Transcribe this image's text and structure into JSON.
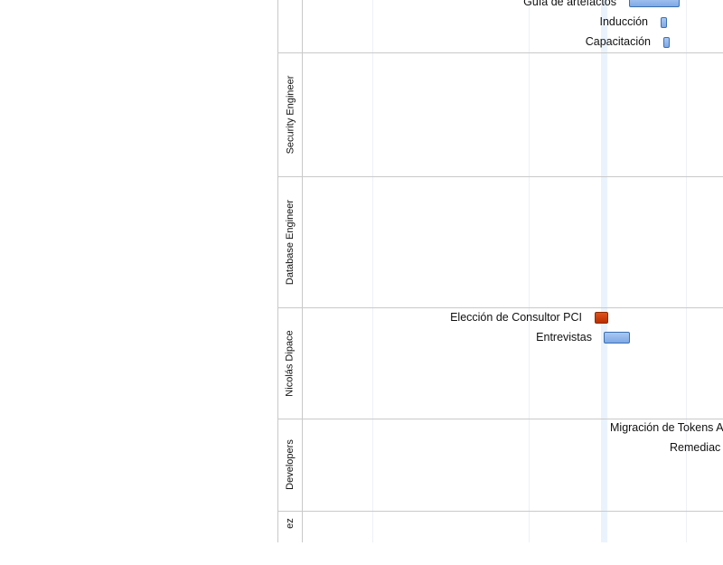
{
  "timeline": {
    "rows": [
      {
        "id": "top-group",
        "label": ""
      },
      {
        "id": "security-engineer",
        "label": "Security Engineer"
      },
      {
        "id": "database-engineer",
        "label": "Database Engineer"
      },
      {
        "id": "nicolas-dipace",
        "label": "Nicolás Dipace"
      },
      {
        "id": "developers",
        "label": "Developers"
      },
      {
        "id": "partial",
        "label": "ez"
      }
    ],
    "tasks": [
      {
        "label": "Guía de artefactos",
        "style": "normal"
      },
      {
        "label": "Inducción",
        "style": "normal"
      },
      {
        "label": "Capacitación",
        "style": "normal"
      },
      {
        "label": "Elección de Consultor PCI",
        "style": "milestone"
      },
      {
        "label": "Entrevistas",
        "style": "normal"
      },
      {
        "label": "Migración de Tokens A",
        "style": "normal"
      },
      {
        "label": "Remediac",
        "style": "normal"
      }
    ]
  },
  "colors": {
    "bar_fill": "#8fb5ec",
    "bar_border": "#3a6fb4",
    "milestone_fill": "#c83a08",
    "grid": "#eef0f5",
    "today_band": "#eaf3fd",
    "separator": "#c9c9c9"
  }
}
